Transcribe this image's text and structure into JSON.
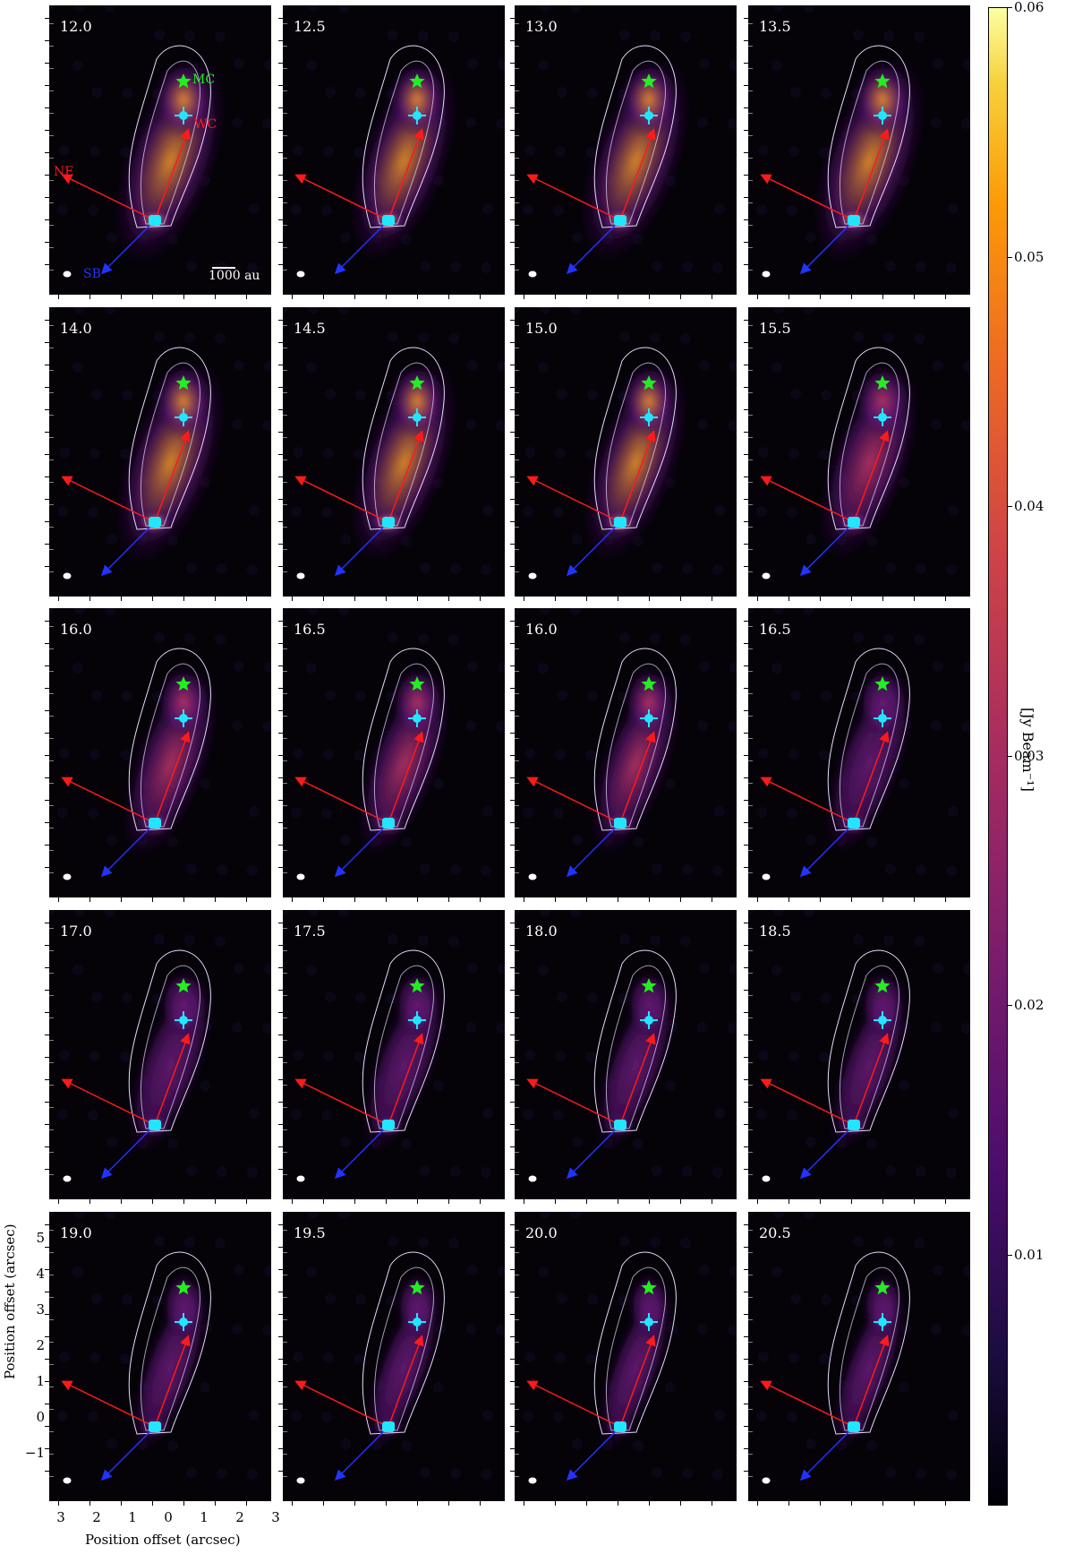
{
  "panels": [
    {
      "velocity": "12.0",
      "intensity": 1.0,
      "labels": true
    },
    {
      "velocity": "12.5",
      "intensity": 0.9,
      "labels": false
    },
    {
      "velocity": "13.0",
      "intensity": 0.95,
      "labels": false
    },
    {
      "velocity": "13.5",
      "intensity": 1.0,
      "labels": false
    },
    {
      "velocity": "14.0",
      "intensity": 0.95,
      "labels": false
    },
    {
      "velocity": "14.5",
      "intensity": 0.9,
      "labels": false
    },
    {
      "velocity": "15.0",
      "intensity": 0.85,
      "labels": false
    },
    {
      "velocity": "15.5",
      "intensity": 0.75,
      "labels": false
    },
    {
      "velocity": "16.0",
      "intensity": 0.65,
      "labels": false
    },
    {
      "velocity": "16.5",
      "intensity": 0.6,
      "labels": false
    },
    {
      "velocity": "16.0",
      "intensity": 0.55,
      "labels": false
    },
    {
      "velocity": "16.5",
      "intensity": 0.5,
      "labels": false
    },
    {
      "velocity": "17.0",
      "intensity": 0.45,
      "labels": false
    },
    {
      "velocity": "17.5",
      "intensity": 0.4,
      "labels": false
    },
    {
      "velocity": "18.0",
      "intensity": 0.35,
      "labels": false
    },
    {
      "velocity": "18.5",
      "intensity": 0.32,
      "labels": false
    },
    {
      "velocity": "19.0",
      "intensity": 0.28,
      "labels": false
    },
    {
      "velocity": "19.5",
      "intensity": 0.25,
      "labels": false
    },
    {
      "velocity": "20.0",
      "intensity": 0.22,
      "labels": false
    },
    {
      "velocity": "20.5",
      "intensity": 0.2,
      "labels": false
    }
  ],
  "annotations": {
    "mc_label": "MC",
    "ne_label": "NE",
    "sb_label": "SB",
    "scalebar_label": "1000 au",
    "red_arrow_label": "WC"
  },
  "axes": {
    "xlabel": "Position offset (arcsec)",
    "ylabel": "Position offset (arcsec)",
    "xticks": [
      "3",
      "2",
      "1",
      "0",
      "1",
      "2",
      "3"
    ],
    "yticks": [
      "5",
      "4",
      "3",
      "2",
      "1",
      "0",
      "−1"
    ]
  },
  "colorbar": {
    "label": "[Jy Beam⁻¹]",
    "ticks": [
      "0.06",
      "0.05",
      "0.04",
      "0.03",
      "0.02",
      "0.01"
    ],
    "colormap": "inferno",
    "vmin": 0.0,
    "vmax": 0.06
  },
  "colors": {
    "mc_star": "#22ee22",
    "source_marker": "#22e5ff",
    "red_arrow": "#ff1a1a",
    "blue_arrow": "#2233ff",
    "contour": "#e8dcff"
  }
}
